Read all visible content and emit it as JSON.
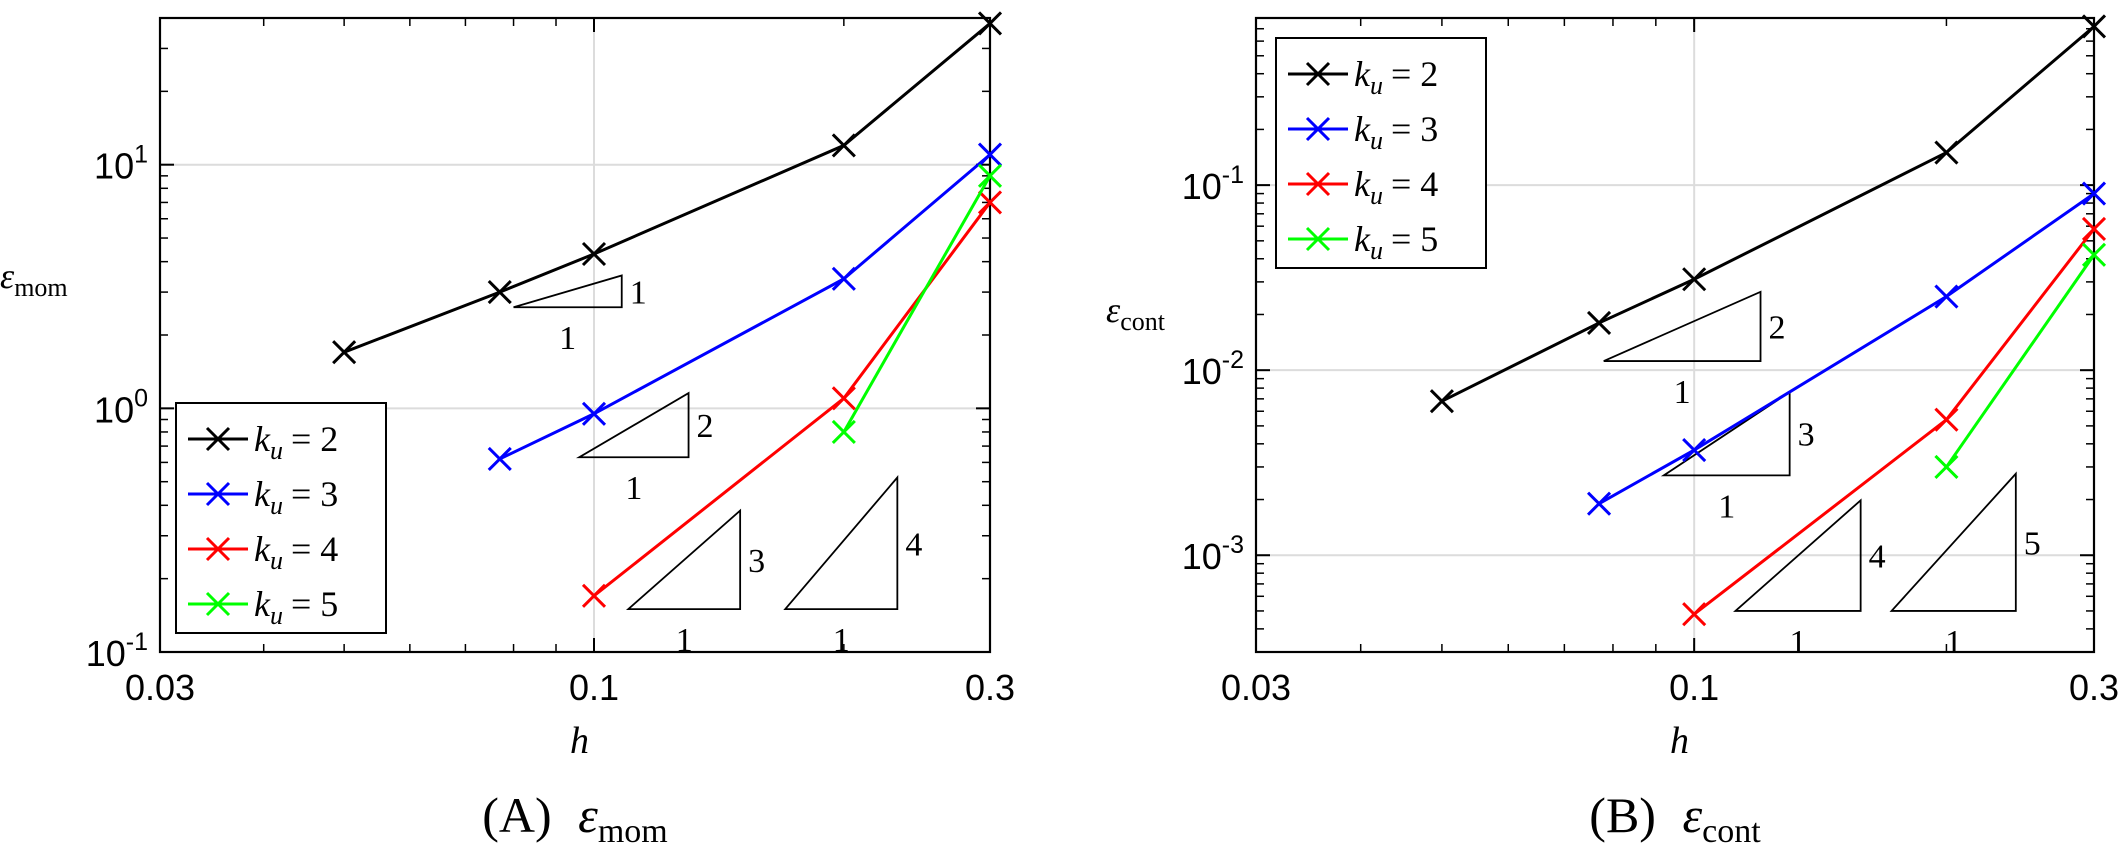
{
  "chart_data": [
    {
      "type": "line",
      "panel_label": "(A)",
      "caption_symbol": "ε",
      "caption_subscript": "mom",
      "ylabel_symbol": "ε",
      "ylabel_subscript": "mom",
      "xlabel": "h",
      "xscale": "log",
      "yscale": "log",
      "xlim": [
        0.03,
        0.3
      ],
      "ylim": [
        0.1,
        40
      ],
      "grid": true,
      "legend_position": "bottom-left",
      "x_ticks": [
        {
          "value": 0.03,
          "label": "0.03"
        },
        {
          "value": 0.1,
          "label": "0.1"
        },
        {
          "value": 0.3,
          "label": "0.3"
        }
      ],
      "y_ticks": [
        {
          "value": 0.1,
          "base": "10",
          "exp": "-1"
        },
        {
          "value": 1,
          "base": "10",
          "exp": "0"
        },
        {
          "value": 10,
          "base": "10",
          "exp": "1"
        }
      ],
      "series": [
        {
          "name": "k_u = 2",
          "sym": "k",
          "sub": "u",
          "eq": "= 2",
          "color": "#000000",
          "x": [
            0.05,
            0.077,
            0.1,
            0.2,
            0.3
          ],
          "y": [
            1.7,
            3.0,
            4.3,
            12.0,
            38.0
          ]
        },
        {
          "name": "k_u = 3",
          "sym": "k",
          "sub": "u",
          "eq": "= 3",
          "color": "#0000ff",
          "x": [
            0.077,
            0.1,
            0.2,
            0.3
          ],
          "y": [
            0.62,
            0.95,
            3.4,
            11.0
          ]
        },
        {
          "name": "k_u = 4",
          "sym": "k",
          "sub": "u",
          "eq": "= 4",
          "color": "#ff0000",
          "x": [
            0.1,
            0.2,
            0.3
          ],
          "y": [
            0.17,
            1.1,
            7.0
          ]
        },
        {
          "name": "k_u = 5",
          "sym": "k",
          "sub": "u",
          "eq": "= 5",
          "color": "#00ff00",
          "x": [
            0.2,
            0.3
          ],
          "y": [
            0.8,
            9.0
          ]
        }
      ],
      "slope_triangles": [
        {
          "x0": 0.08,
          "x1": 0.108,
          "y0": 2.6,
          "rise_label": "1",
          "run_label": "1",
          "slope": 1
        },
        {
          "x0": 0.096,
          "x1": 0.13,
          "y0": 0.63,
          "rise_label": "2",
          "run_label": "1",
          "slope": 2
        },
        {
          "x0": 0.11,
          "x1": 0.15,
          "y0": 0.15,
          "rise_label": "3",
          "run_label": "1",
          "slope": 3
        },
        {
          "x0": 0.17,
          "x1": 0.232,
          "y0": 0.15,
          "rise_label": "4",
          "run_label": "1",
          "slope": 4
        }
      ]
    },
    {
      "type": "line",
      "panel_label": "(B)",
      "caption_symbol": "ε",
      "caption_subscript": "cont",
      "ylabel_symbol": "ε",
      "ylabel_subscript": "cont",
      "xlabel": "h",
      "xscale": "log",
      "yscale": "log",
      "xlim": [
        0.03,
        0.3
      ],
      "ylim": [
        0.0003,
        0.8
      ],
      "grid": true,
      "legend_position": "top-left",
      "x_ticks": [
        {
          "value": 0.03,
          "label": "0.03"
        },
        {
          "value": 0.1,
          "label": "0.1"
        },
        {
          "value": 0.3,
          "label": "0.3"
        }
      ],
      "y_ticks": [
        {
          "value": 0.001,
          "base": "10",
          "exp": "-3"
        },
        {
          "value": 0.01,
          "base": "10",
          "exp": "-2"
        },
        {
          "value": 0.1,
          "base": "10",
          "exp": "-1"
        }
      ],
      "series": [
        {
          "name": "k_u = 2",
          "sym": "k",
          "sub": "u",
          "eq": "= 2",
          "color": "#000000",
          "x": [
            0.05,
            0.077,
            0.1,
            0.2,
            0.3
          ],
          "y": [
            0.0068,
            0.018,
            0.031,
            0.15,
            0.72
          ]
        },
        {
          "name": "k_u = 3",
          "sym": "k",
          "sub": "u",
          "eq": "= 3",
          "color": "#0000ff",
          "x": [
            0.077,
            0.1,
            0.2,
            0.3
          ],
          "y": [
            0.0019,
            0.0037,
            0.025,
            0.09
          ]
        },
        {
          "name": "k_u = 4",
          "sym": "k",
          "sub": "u",
          "eq": "= 4",
          "color": "#ff0000",
          "x": [
            0.1,
            0.2,
            0.3
          ],
          "y": [
            0.00048,
            0.0054,
            0.058
          ]
        },
        {
          "name": "k_u = 5",
          "sym": "k",
          "sub": "u",
          "eq": "= 5",
          "color": "#00ff00",
          "x": [
            0.2,
            0.3
          ],
          "y": [
            0.003,
            0.042
          ]
        }
      ],
      "slope_triangles": [
        {
          "x0": 0.078,
          "x1": 0.12,
          "y0": 0.0112,
          "rise_label": "2",
          "run_label": "1",
          "slope": 2
        },
        {
          "x0": 0.092,
          "x1": 0.13,
          "y0": 0.0027,
          "rise_label": "3",
          "run_label": "1",
          "slope": 3
        },
        {
          "x0": 0.112,
          "x1": 0.158,
          "y0": 0.0005,
          "rise_label": "4",
          "run_label": "1",
          "slope": 4
        },
        {
          "x0": 0.172,
          "x1": 0.242,
          "y0": 0.0005,
          "rise_label": "5",
          "run_label": "1",
          "slope": 5
        }
      ]
    }
  ]
}
